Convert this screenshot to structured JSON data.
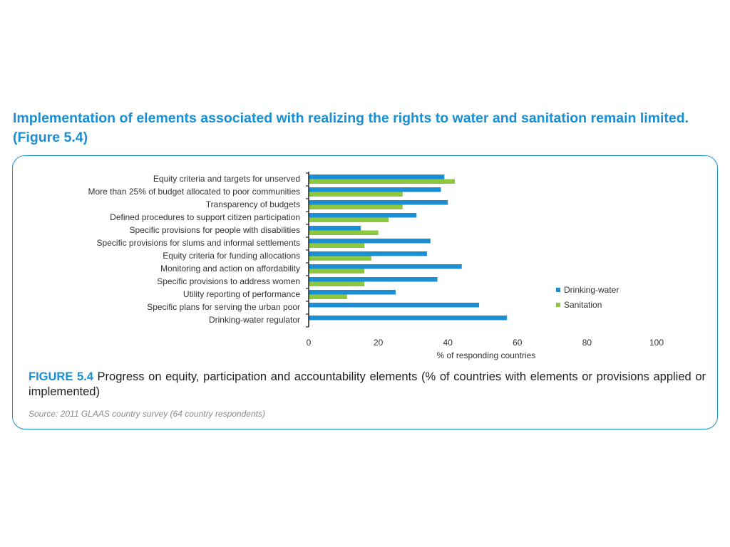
{
  "headline": "Implementation of elements associated with realizing the rights to water and sanitation remain limited. (Figure 5.4)",
  "caption": {
    "figure_label": "FIGURE 5.4",
    "text": "Progress on equity, participation and accountability elements (% of countries with elements or provisions applied or implemented)"
  },
  "source": "Source: 2011 GLAAS country survey (64 country respondents)",
  "colors": {
    "accent": "#1a8fd3",
    "drinking_water": "#1a8fd3",
    "sanitation": "#8dc63f"
  },
  "chart_data": {
    "type": "bar",
    "orientation": "horizontal",
    "categories": [
      "Equity criteria and targets for unserved",
      "More than 25% of budget allocated to poor communities",
      "Transparency of budgets",
      "Defined procedures to support citizen participation",
      "Specific provisions for people with disabilities",
      "Specific provisions for slums and informal settlements",
      "Equity criteria for funding allocations",
      "Monitoring and action on affordability",
      "Specific provisions to address women",
      "Utility reporting of performance",
      "Specific plans for serving the urban poor",
      "Drinking-water regulator"
    ],
    "series": [
      {
        "name": "Drinking-water",
        "color": "#1a8fd3",
        "values": [
          39,
          38,
          40,
          31,
          15,
          35,
          34,
          44,
          37,
          25,
          49,
          57
        ]
      },
      {
        "name": "Sanitation",
        "color": "#8dc63f",
        "values": [
          42,
          27,
          27,
          23,
          20,
          16,
          18,
          16,
          16,
          11,
          null,
          null
        ]
      }
    ],
    "xlabel": "% of responding countries",
    "xticks": [
      "0",
      "20",
      "40",
      "60",
      "80",
      "100"
    ],
    "xlim": [
      0,
      100
    ],
    "grid": false,
    "legend_position": "right"
  }
}
